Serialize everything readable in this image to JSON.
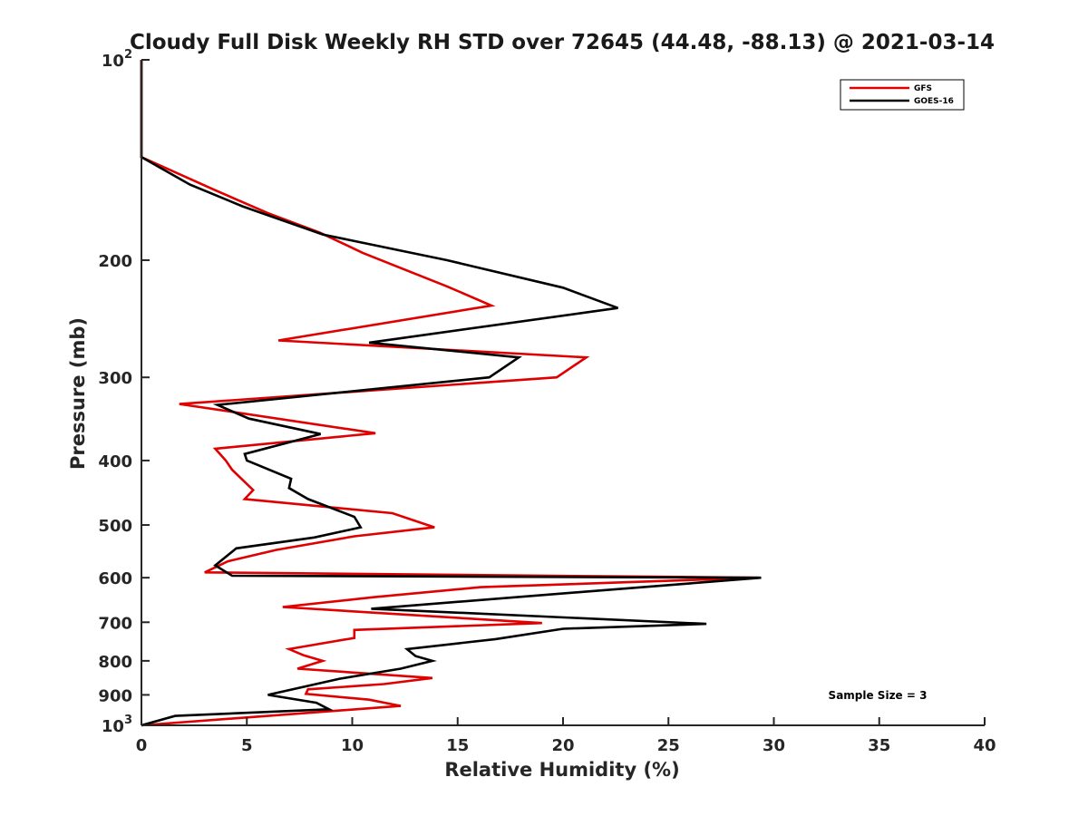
{
  "chart_data": {
    "type": "line",
    "title": "Cloudy Full Disk Weekly RH STD over 72645 (44.48, -88.13) @ 2021-03-14",
    "xlabel": "Relative Humidity (%)",
    "ylabel": "Pressure (mb)",
    "xlim": [
      0,
      40
    ],
    "ylim": [
      100,
      1000
    ],
    "y_scale": "log",
    "y_reversed": true,
    "x_ticks": [
      0,
      5,
      10,
      15,
      20,
      25,
      30,
      35,
      40
    ],
    "y_ticks": [
      {
        "value": 100,
        "base": "10",
        "exp": "2"
      },
      {
        "value": 200,
        "label": "200"
      },
      {
        "value": 300,
        "label": "300"
      },
      {
        "value": 400,
        "label": "400"
      },
      {
        "value": 500,
        "label": "500"
      },
      {
        "value": 600,
        "label": "600"
      },
      {
        "value": 700,
        "label": "700"
      },
      {
        "value": 800,
        "label": "800"
      },
      {
        "value": 900,
        "label": "900"
      },
      {
        "value": 1000,
        "base": "10",
        "exp": "3"
      }
    ],
    "grid": false,
    "legend_position": "top-right",
    "annotation": "Sample Size = 3",
    "series": [
      {
        "name": "GFS",
        "color": "#e00000",
        "points": [
          [
            0,
            100
          ],
          [
            0,
            140
          ],
          [
            3.5,
            157
          ],
          [
            6,
            170
          ],
          [
            8.5,
            182
          ],
          [
            10.5,
            195
          ],
          [
            14.5,
            219
          ],
          [
            16.6,
            234
          ],
          [
            6.5,
            264
          ],
          [
            21.1,
            280
          ],
          [
            19.7,
            300
          ],
          [
            1.8,
            329
          ],
          [
            11.1,
            364
          ],
          [
            3.5,
            384
          ],
          [
            4.0,
            400
          ],
          [
            4.3,
            413
          ],
          [
            5.3,
            443
          ],
          [
            4.9,
            457
          ],
          [
            11.9,
            480
          ],
          [
            13.9,
            504
          ],
          [
            10.1,
            520
          ],
          [
            6.4,
            545
          ],
          [
            4.1,
            567
          ],
          [
            3.0,
            589
          ],
          [
            29.3,
            600
          ],
          [
            16.1,
            620
          ],
          [
            11.0,
            642
          ],
          [
            6.7,
            664
          ],
          [
            19.0,
            702
          ],
          [
            10.1,
            719
          ],
          [
            10.1,
            739
          ],
          [
            7.0,
            768
          ],
          [
            7.7,
            785
          ],
          [
            8.6,
            800
          ],
          [
            7.4,
            822
          ],
          [
            13.8,
            849
          ],
          [
            11.5,
            867
          ],
          [
            7.9,
            883
          ],
          [
            7.8,
            897
          ],
          [
            10.8,
            915
          ],
          [
            12.3,
            935
          ],
          [
            0,
            1000
          ]
        ]
      },
      {
        "name": "GOES-16",
        "color": "#000000",
        "points": [
          [
            0,
            100
          ],
          [
            0,
            140
          ],
          [
            2.3,
            154
          ],
          [
            4.8,
            166
          ],
          [
            8.6,
            183
          ],
          [
            14.5,
            200
          ],
          [
            20.0,
            220
          ],
          [
            22.6,
            236
          ],
          [
            10.8,
            266
          ],
          [
            17.9,
            280
          ],
          [
            16.5,
            300
          ],
          [
            3.6,
            330
          ],
          [
            5.1,
            346
          ],
          [
            8.5,
            365
          ],
          [
            4.9,
            391
          ],
          [
            5.0,
            400
          ],
          [
            7.1,
            426
          ],
          [
            7.0,
            440
          ],
          [
            7.9,
            457
          ],
          [
            10.1,
            486
          ],
          [
            10.4,
            504
          ],
          [
            8.2,
            522
          ],
          [
            4.5,
            542
          ],
          [
            3.5,
            575
          ],
          [
            4.3,
            596
          ],
          [
            29.4,
            600
          ],
          [
            21.0,
            630
          ],
          [
            10.9,
            668
          ],
          [
            26.8,
            704
          ],
          [
            20.0,
            716
          ],
          [
            16.8,
            742
          ],
          [
            12.6,
            768
          ],
          [
            13.0,
            787
          ],
          [
            13.8,
            800
          ],
          [
            12.3,
            822
          ],
          [
            9.4,
            851
          ],
          [
            6.0,
            900
          ],
          [
            8.3,
            925
          ],
          [
            8.9,
            946
          ],
          [
            1.6,
            968
          ],
          [
            0,
            1000
          ]
        ]
      }
    ]
  }
}
